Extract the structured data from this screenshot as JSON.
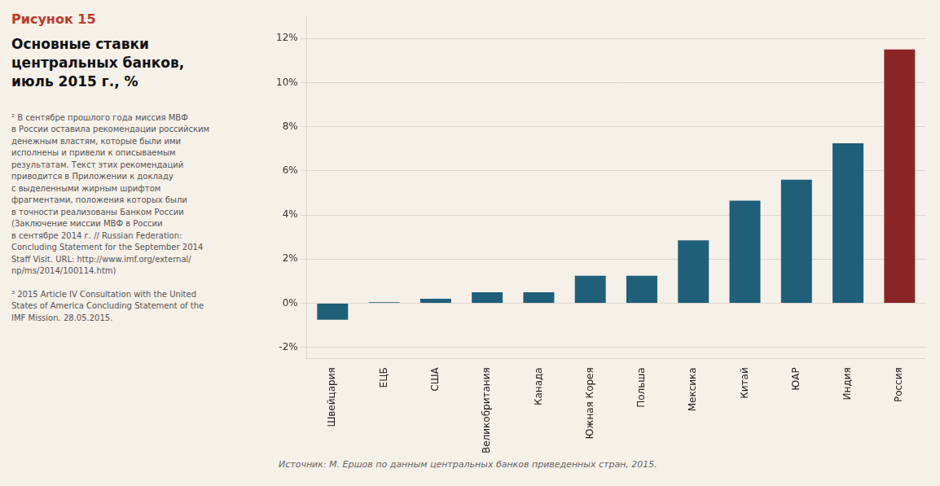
{
  "chart_data": {
    "type": "bar",
    "title": "Основные ставки\nцентральных банков,\nиюль 2015 г., %",
    "annotations": [
      "Рисунок 15",
      "² В сентябре прошлого года миссия МВФ\nв России оставила рекомендации российским\nденежным властям, которые были ими\nисполнены и привели к описываемым\nрезультатам. Текст этих рекомендаций\nприводится в Приложении к докладу\nс выделенными жирным шрифтом\nфрагментами, положения которых были\nв точности реализованы Банком России\n(Заключение миссии МВФ в России\nв сентябре 2014 г. // Russian Federation:\nConcluding Statement for the September 2014\nStaff Visit. URL: http://www.imf.org/external/\nnp/ms/2014/100114.htm)",
      "³ 2015 Article IV Consultation with the United\nStates of America Concluding Statement of the\nIMF Mission. 28.05.2015.",
      "Источник: М. Ершов по данным центральных банков приведенных стран, 2015."
    ],
    "categories": [
      "Швейцария",
      "ЕЦБ",
      "США",
      "Великобритания",
      "Канада",
      "Южная Корея",
      "Польша",
      "Мексика",
      "Китай",
      "ЮАР",
      "Индия",
      "Россия"
    ],
    "values": [
      -0.75,
      0.05,
      0.2,
      0.5,
      0.5,
      1.25,
      1.25,
      2.85,
      4.65,
      5.6,
      7.25,
      11.5
    ],
    "colors": [
      "#1f5f7a",
      "#1f5f7a",
      "#1f5f7a",
      "#1f5f7a",
      "#1f5f7a",
      "#1f5f7a",
      "#1f5f7a",
      "#1f5f7a",
      "#1f5f7a",
      "#1f5f7a",
      "#1f5f7a",
      "#8b2525"
    ],
    "ylim": [
      -2.5,
      13.0
    ],
    "yticks": [
      {
        "value": -2,
        "label": "-2%"
      },
      {
        "value": 0,
        "label": "0%"
      },
      {
        "value": 2,
        "label": "2%"
      },
      {
        "value": 4,
        "label": "4%"
      },
      {
        "value": 6,
        "label": "6%"
      },
      {
        "value": 8,
        "label": "8%"
      },
      {
        "value": 10,
        "label": "10%"
      },
      {
        "value": 12,
        "label": "12%"
      }
    ],
    "grid": true
  }
}
